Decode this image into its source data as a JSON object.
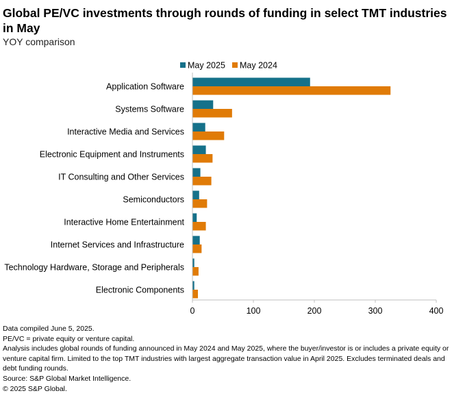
{
  "title": "Global PE/VC investments through rounds of funding in select TMT industries in May",
  "subtitle": "YOY comparison",
  "colors": {
    "may2025": "#15718a",
    "may2024": "#e07b07",
    "axis": "#bfbfbf",
    "grid": "#d9d9d9"
  },
  "chart_data": {
    "type": "bar",
    "orientation": "horizontal",
    "title": "Global PE/VC investments through rounds of funding in select TMT industries in May",
    "subtitle": "YOY comparison",
    "categories": [
      "Application Software",
      "Systems Software",
      "Interactive Media and Services",
      "Electronic Equipment and Instruments",
      "IT Consulting and Other Services",
      "Semiconductors",
      "Interactive Home Entertainment",
      "Internet Services and Infrastructure",
      "Technology Hardware, Storage and Peripherals",
      "Electronic Components"
    ],
    "series": [
      {
        "name": "May 2025",
        "values": [
          193,
          34,
          21,
          22,
          13,
          11,
          7,
          12,
          3,
          3
        ]
      },
      {
        "name": "May 2024",
        "values": [
          325,
          65,
          52,
          33,
          31,
          24,
          22,
          15,
          10,
          9
        ]
      }
    ],
    "xlim": [
      0,
      400
    ],
    "xticks": [
      0,
      100,
      200,
      300,
      400
    ],
    "legend_position": "top",
    "grid": false
  },
  "footnotes": [
    "Data compiled June 5, 2025.",
    "PE/VC = private equity or venture capital.",
    "Analysis includes global rounds of funding announced in May 2024 and May 2025, where the buyer/investor is or includes a private equity or venture capital firm. Limited to the top TMT industries with largest aggregate transaction value in April 2025. Excludes terminated deals and debt funding rounds.",
    "Source: S&P Global Market Intelligence.",
    "© 2025 S&P Global."
  ]
}
